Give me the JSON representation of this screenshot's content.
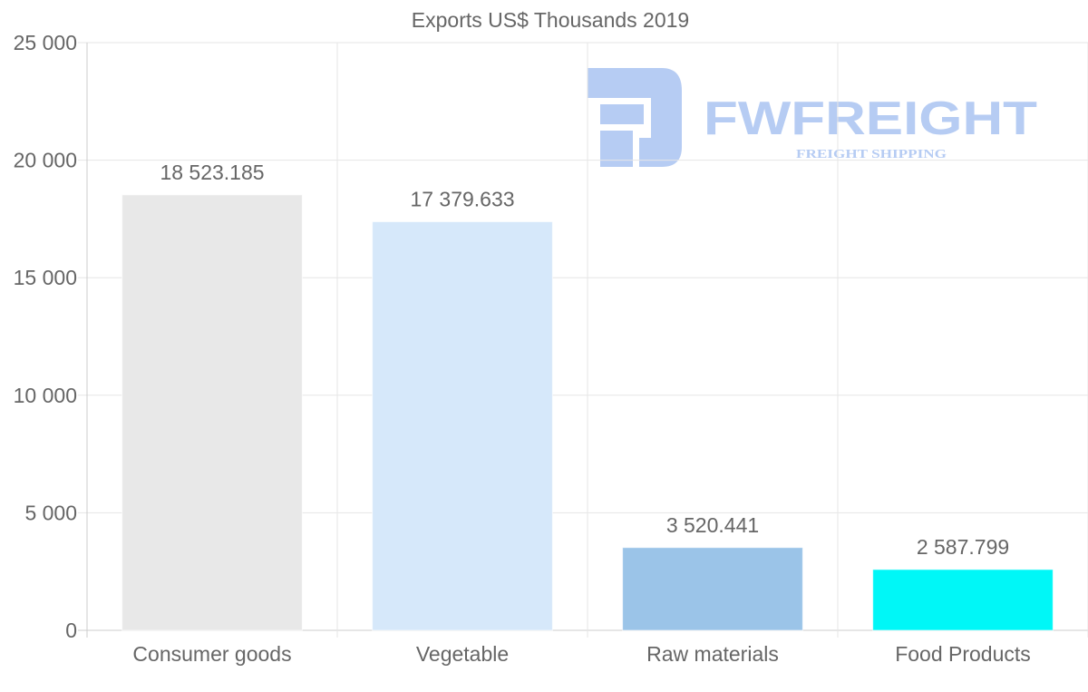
{
  "chart_data": {
    "type": "bar",
    "title": "Exports US$ Thousands 2019",
    "categories": [
      "Consumer goods",
      "Vegetable",
      "Raw materials",
      "Food Products"
    ],
    "values": [
      18523.185,
      17379.633,
      3520.441,
      2587.799
    ],
    "value_labels": [
      "18 523.185",
      "17 379.633",
      "3 520.441",
      "2 587.799"
    ],
    "bar_colors": [
      "#e8e8e8",
      "#d6e8fa",
      "#9bc4e8",
      "#00f7f7"
    ],
    "ylim": [
      0,
      25000
    ],
    "yticks": [
      0,
      5000,
      10000,
      15000,
      20000,
      25000
    ],
    "ytick_labels": [
      "0",
      "5 000",
      "10 000",
      "15 000",
      "20 000",
      "25 000"
    ],
    "xlabel": "",
    "ylabel": "",
    "grid": true,
    "legend": "none"
  },
  "watermark": {
    "brand": "FWFREIGHT",
    "tagline": "FREIGHT SHIPPING",
    "color": "#6f9ae8"
  },
  "colors": {
    "text": "#666666",
    "grid": "#e6e6e6",
    "axis": "#cccccc"
  }
}
